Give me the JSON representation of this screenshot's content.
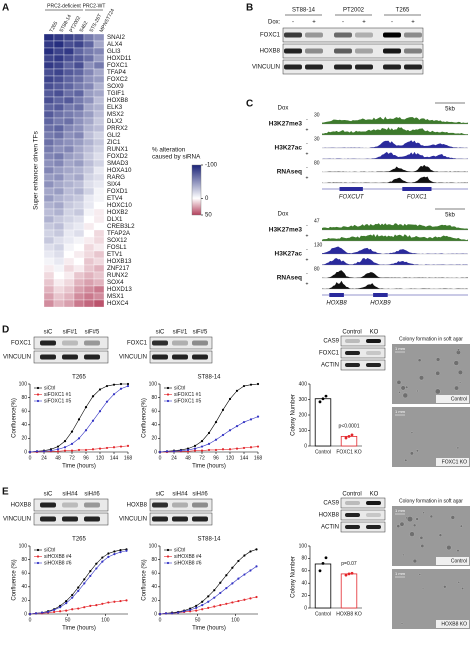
{
  "panel_labels": [
    "A",
    "B",
    "C",
    "D",
    "E"
  ],
  "heatmap": {
    "group_labels": [
      "PRC2-deficient",
      "PRC2-WT"
    ],
    "columns": [
      "T265",
      "ST88-14",
      "PT2002",
      "S462",
      "STS-26T",
      "MPNST724"
    ],
    "ylabel": "Super enhancer driven TFs",
    "rows": [
      "SNAI2",
      "ALX4",
      "GLI3",
      "HOXD11",
      "FOXC1",
      "TFAP4",
      "FOXC2",
      "SOX9",
      "TGIF1",
      "HOXB8",
      "ELK3",
      "MSX2",
      "DLX2",
      "PRRX2",
      "GLI2",
      "ZIC1",
      "RUNX1",
      "FOXD2",
      "SMAD3",
      "HOXA10",
      "RARG",
      "SIX4",
      "FOXD1",
      "ETV4",
      "HOXC10",
      "HOXB2",
      "DLX1",
      "CREB3L2",
      "TFAP2A",
      "SOX12",
      "FOSL1",
      "ETV1",
      "HOXB13",
      "ZNF217",
      "RUNX2",
      "SOX4",
      "HOXD13",
      "MSX1",
      "HOXC4"
    ],
    "highlight_rows": [
      4,
      9,
      11,
      17,
      22,
      36
    ],
    "highlight_color": "#d42a2a",
    "values": [
      [
        -95,
        -90,
        -85,
        -80,
        -60,
        -50
      ],
      [
        -90,
        -95,
        -80,
        -85,
        -70,
        -40
      ],
      [
        -95,
        -85,
        -90,
        -70,
        -60,
        -55
      ],
      [
        -85,
        -90,
        -80,
        -75,
        -65,
        -45
      ],
      [
        -90,
        -85,
        -70,
        -80,
        -50,
        -60
      ],
      [
        -80,
        -85,
        -75,
        -70,
        -55,
        -40
      ],
      [
        -85,
        -80,
        -70,
        -65,
        -50,
        -45
      ],
      [
        -80,
        -75,
        -70,
        -60,
        -55,
        -35
      ],
      [
        -75,
        -80,
        -65,
        -70,
        -45,
        -40
      ],
      [
        -80,
        -70,
        -75,
        -60,
        -50,
        -30
      ],
      [
        -70,
        -75,
        -60,
        -65,
        -40,
        -35
      ],
      [
        -75,
        -65,
        -60,
        -55,
        -45,
        -30
      ],
      [
        -70,
        -60,
        -65,
        -50,
        -40,
        -25
      ],
      [
        -65,
        -70,
        -55,
        -50,
        -35,
        -30
      ],
      [
        -60,
        -65,
        -50,
        -55,
        -30,
        -20
      ],
      [
        -65,
        -55,
        -50,
        -45,
        -35,
        -25
      ],
      [
        -60,
        -50,
        -55,
        -40,
        -30,
        -20
      ],
      [
        -55,
        -60,
        -45,
        -40,
        -25,
        -15
      ],
      [
        -50,
        -55,
        -40,
        -45,
        -30,
        -20
      ],
      [
        -55,
        -45,
        -40,
        -35,
        -25,
        -10
      ],
      [
        -45,
        -50,
        -35,
        -40,
        -20,
        -15
      ],
      [
        -50,
        -40,
        -35,
        -30,
        -15,
        -10
      ],
      [
        -40,
        -45,
        -30,
        -35,
        -20,
        -5
      ],
      [
        -45,
        -35,
        -30,
        -25,
        -10,
        -5
      ],
      [
        -35,
        -40,
        -25,
        -20,
        -10,
        0
      ],
      [
        -30,
        -35,
        -20,
        -25,
        -5,
        5
      ],
      [
        -35,
        -25,
        -20,
        -15,
        0,
        5
      ],
      [
        -25,
        -30,
        -15,
        -10,
        5,
        0
      ],
      [
        -20,
        -25,
        -10,
        -15,
        0,
        10
      ],
      [
        -25,
        -15,
        -10,
        -5,
        5,
        10
      ],
      [
        -15,
        -20,
        -5,
        0,
        10,
        5
      ],
      [
        -10,
        -15,
        0,
        5,
        10,
        15
      ],
      [
        -5,
        -10,
        5,
        0,
        15,
        10
      ],
      [
        5,
        -5,
        10,
        5,
        15,
        20
      ],
      [
        10,
        0,
        5,
        15,
        20,
        15
      ],
      [
        15,
        5,
        10,
        20,
        25,
        20
      ],
      [
        20,
        10,
        15,
        25,
        30,
        35
      ],
      [
        25,
        15,
        20,
        30,
        35,
        30
      ],
      [
        30,
        20,
        25,
        35,
        40,
        45
      ]
    ],
    "colorbar": {
      "title": [
        "% alteration",
        "caused by siRNA"
      ],
      "lim": [
        -100,
        50
      ],
      "ticks": [
        -100,
        0,
        50
      ],
      "colors": [
        "#1b2378",
        "#ffffff",
        "#b3405c"
      ]
    }
  },
  "blot_b": {
    "dox_label": "Dox:",
    "lanes": [
      "ST88-14",
      "PT2002",
      "T265"
    ],
    "signs": [
      "-",
      "+",
      "-",
      "+",
      "-",
      "+"
    ],
    "rows": [
      "FOXC1",
      "HOXB8",
      "VINCULIN"
    ]
  },
  "tracks": [
    {
      "dox_label": "Dox",
      "scale": "5kb",
      "signs": [
        "-",
        "+"
      ],
      "marks": [
        {
          "name": "H3K27me3",
          "max": 30,
          "color": "#3d7a2c"
        },
        {
          "name": "H3K27ac",
          "max": 30,
          "color": "#2a2a9c"
        },
        {
          "name": "RNAseq",
          "max": 80,
          "color": "#111111"
        }
      ],
      "genes": [
        "FOXCUT",
        "FOXC1"
      ]
    },
    {
      "dox_label": "Dox",
      "scale": "5kb",
      "signs": [
        "-",
        "+"
      ],
      "marks": [
        {
          "name": "H3K27me3",
          "max": 47,
          "color": "#3d7a2c"
        },
        {
          "name": "H3K27ac",
          "max": 130,
          "color": "#2a2a9c"
        },
        {
          "name": "RNAseq",
          "max": 80,
          "color": "#111111"
        }
      ],
      "genes": [
        "HOXB8",
        "HOXB9"
      ]
    }
  ],
  "panel_d": {
    "blot_left": {
      "lanes": [
        "siC",
        "siF#1",
        "siF#5"
      ],
      "rows": [
        "FOXC1",
        "VINCULIN"
      ]
    },
    "blot_right": {
      "lanes": [
        "siC",
        "siF#1",
        "siF#5"
      ],
      "rows": [
        "FOXC1",
        "VINCULIN"
      ]
    },
    "ko_blot": {
      "lanes": [
        "Control",
        "KO"
      ],
      "rows": [
        "CAS9",
        "FOXC1",
        "ACTIN"
      ]
    },
    "agar": {
      "title": "Colony formation in soft agar",
      "scale": "1 mm",
      "labels": [
        "Control",
        "FOXC1 KO"
      ]
    }
  },
  "panel_e": {
    "blot_left": {
      "lanes": [
        "siC",
        "siH#4",
        "siH#6"
      ],
      "rows": [
        "HOXB8",
        "VINCULIN"
      ]
    },
    "blot_right": {
      "lanes": [
        "siC",
        "siH#4",
        "siH#6"
      ],
      "rows": [
        "HOXB8",
        "VINCULIN"
      ]
    },
    "ko_blot": {
      "lanes": [
        "Control",
        "KO"
      ],
      "rows": [
        "CAS9",
        "HOXB8",
        "ACTIN"
      ]
    },
    "agar": {
      "title": "Colony formation in soft agar",
      "scale": "1 mm",
      "labels": [
        "Control",
        "HOXB8 KO"
      ]
    }
  },
  "chart_data": [
    {
      "type": "line",
      "title": "T265",
      "xlabel": "Time (hours)",
      "ylabel": "Confluence(%)",
      "x": [
        0,
        12,
        24,
        36,
        48,
        60,
        72,
        84,
        96,
        108,
        120,
        132,
        144,
        156,
        168
      ],
      "xlim": [
        0,
        168
      ],
      "xticks": [
        0,
        24,
        48,
        72,
        96,
        120,
        144,
        168
      ],
      "ylim": [
        0,
        100
      ],
      "yticks": [
        0,
        20,
        40,
        60,
        80,
        100
      ],
      "series": [
        {
          "name": "siCtrl",
          "color": "#000000",
          "values": [
            0,
            1,
            2,
            4,
            8,
            16,
            30,
            48,
            66,
            82,
            92,
            97,
            99,
            100,
            100
          ]
        },
        {
          "name": "siFOXC1 #1",
          "color": "#e3262b",
          "values": [
            0,
            0,
            1,
            1,
            1,
            2,
            2,
            3,
            3,
            4,
            5,
            6,
            7,
            8,
            9
          ]
        },
        {
          "name": "siFOXC1 #5",
          "color": "#3434c4",
          "values": [
            0,
            1,
            1,
            2,
            4,
            7,
            12,
            20,
            32,
            46,
            60,
            74,
            85,
            93,
            97
          ]
        }
      ]
    },
    {
      "type": "line",
      "title": "ST88-14",
      "xlabel": "Time (hours)",
      "ylabel": "Confluence(%)",
      "x": [
        0,
        12,
        24,
        36,
        48,
        60,
        72,
        84,
        96,
        108,
        120,
        132,
        144,
        156,
        168
      ],
      "xlim": [
        0,
        168
      ],
      "xticks": [
        0,
        24,
        48,
        72,
        96,
        120,
        144,
        168
      ],
      "ylim": [
        0,
        100
      ],
      "yticks": [
        0,
        20,
        40,
        60,
        80,
        100
      ],
      "series": [
        {
          "name": "siCtrl",
          "color": "#000000",
          "values": [
            0,
            1,
            2,
            3,
            5,
            9,
            16,
            28,
            44,
            62,
            78,
            90,
            97,
            99,
            100
          ]
        },
        {
          "name": "siFOXC1 #1",
          "color": "#e3262b",
          "values": [
            0,
            0,
            1,
            1,
            1,
            2,
            2,
            3,
            3,
            4,
            4,
            5,
            6,
            7,
            8
          ]
        },
        {
          "name": "siFOXC1 #5",
          "color": "#3434c4",
          "values": [
            0,
            1,
            1,
            2,
            3,
            5,
            8,
            12,
            18,
            25,
            32,
            38,
            44,
            48,
            52
          ]
        }
      ]
    },
    {
      "type": "bar",
      "ylabel": "Colony Number",
      "categories": [
        "Control",
        "FOXC1 KO"
      ],
      "values": [
        305,
        62
      ],
      "points": [
        [
          285,
          305,
          322
        ],
        [
          52,
          62,
          72
        ]
      ],
      "colors": [
        "#000000",
        "#e3262b"
      ],
      "annotation": "p<0.0001",
      "ylim": [
        0,
        400
      ],
      "yticks": [
        0,
        100,
        200,
        300,
        400
      ]
    },
    {
      "type": "line",
      "title": "T265",
      "xlabel": "Time (hours)",
      "ylabel": "Confluence (%)",
      "x": [
        0,
        8,
        16,
        24,
        32,
        40,
        48,
        56,
        64,
        72,
        80,
        88,
        96,
        104,
        112,
        120,
        128
      ],
      "xlim": [
        0,
        130
      ],
      "xticks": [
        0,
        50,
        100
      ],
      "ylim": [
        0,
        100
      ],
      "yticks": [
        0,
        20,
        40,
        60,
        80,
        100
      ],
      "series": [
        {
          "name": "siCtrl",
          "color": "#000000",
          "values": [
            0,
            1,
            2,
            4,
            7,
            12,
            19,
            28,
            39,
            51,
            63,
            74,
            83,
            89,
            92,
            94,
            95
          ]
        },
        {
          "name": "siHOXB8 #4",
          "color": "#e3262b",
          "values": [
            0,
            1,
            1,
            2,
            3,
            4,
            5,
            7,
            8,
            10,
            12,
            13,
            15,
            17,
            18,
            19,
            20
          ]
        },
        {
          "name": "siHOXB8 #6",
          "color": "#3434c4",
          "values": [
            0,
            1,
            2,
            3,
            6,
            10,
            16,
            24,
            34,
            45,
            56,
            67,
            77,
            84,
            88,
            91,
            93
          ]
        }
      ]
    },
    {
      "type": "line",
      "title": "ST88-14",
      "xlabel": "Time (hours)",
      "ylabel": "Confluence (%)",
      "x": [
        0,
        8,
        16,
        24,
        32,
        40,
        48,
        56,
        64,
        72,
        80,
        88,
        96,
        104,
        112,
        120,
        128
      ],
      "xlim": [
        0,
        130
      ],
      "xticks": [
        0,
        50,
        100
      ],
      "ylim": [
        0,
        100
      ],
      "yticks": [
        0,
        20,
        40,
        60,
        80,
        100
      ],
      "series": [
        {
          "name": "siCtrl",
          "color": "#000000",
          "values": [
            0,
            1,
            2,
            3,
            5,
            8,
            12,
            18,
            26,
            35,
            46,
            57,
            68,
            78,
            86,
            92,
            95
          ]
        },
        {
          "name": "siHOXB8 #4",
          "color": "#e3262b",
          "values": [
            0,
            1,
            1,
            2,
            3,
            4,
            5,
            7,
            9,
            11,
            13,
            15,
            17,
            19,
            21,
            23,
            25
          ]
        },
        {
          "name": "siHOXB8 #6",
          "color": "#3434c4",
          "values": [
            0,
            1,
            1,
            2,
            4,
            6,
            9,
            13,
            18,
            24,
            31,
            38,
            45,
            52,
            58,
            64,
            70
          ]
        }
      ]
    },
    {
      "type": "bar",
      "ylabel": "Colony Number",
      "categories": [
        "Control",
        "HOXB8 KO"
      ],
      "values": [
        71,
        55
      ],
      "points": [
        [
          60,
          72,
          81
        ],
        [
          53,
          55,
          56
        ]
      ],
      "colors": [
        "#000000",
        "#e3262b"
      ],
      "annotation": "p=0.07",
      "ylim": [
        0,
        100
      ],
      "yticks": [
        0,
        20,
        40,
        60,
        80,
        100
      ]
    }
  ]
}
